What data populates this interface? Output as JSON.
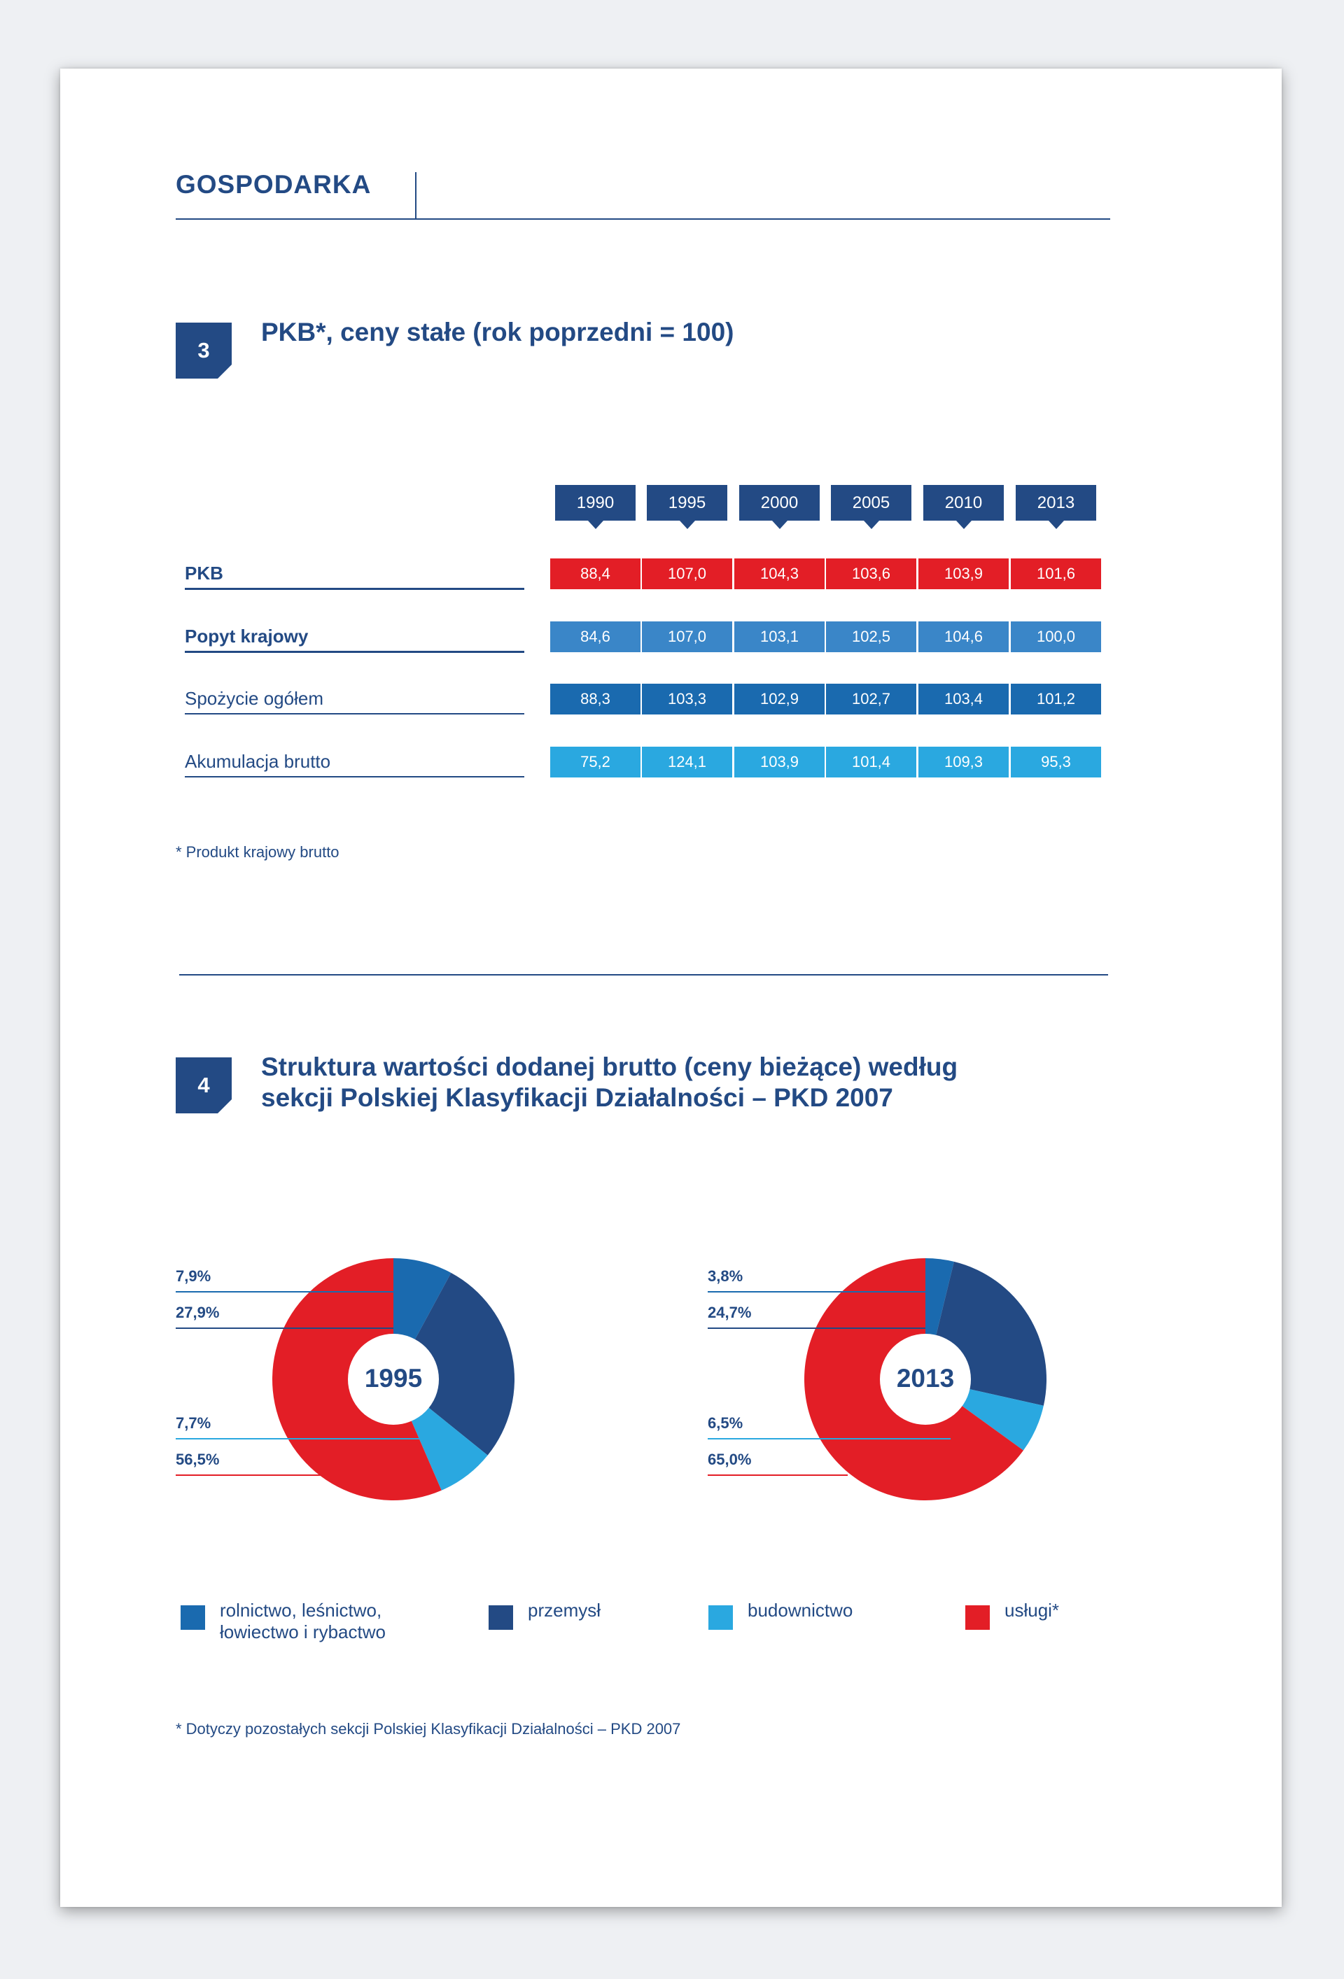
{
  "header": {
    "title": "GOSPODARKA"
  },
  "section3": {
    "number": "3",
    "title": "PKB*, ceny stałe (rok poprzedni = 100)",
    "footnote": "* Produkt krajowy brutto"
  },
  "table": {
    "years": [
      "1990",
      "1995",
      "2000",
      "2005",
      "2010",
      "2013"
    ],
    "rows": [
      {
        "label": "PKB",
        "bold": true,
        "color": "#e31e26",
        "values": [
          "88,4",
          "107,0",
          "104,3",
          "103,6",
          "103,9",
          "101,6"
        ]
      },
      {
        "label": "Popyt krajowy",
        "bold": true,
        "color": "#3a86c8",
        "values": [
          "84,6",
          "107,0",
          "103,1",
          "102,5",
          "104,6",
          "100,0"
        ]
      },
      {
        "label": "Spożycie ogółem",
        "bold": false,
        "color": "#1a6aaf",
        "values": [
          "88,3",
          "103,3",
          "102,9",
          "102,7",
          "103,4",
          "101,2"
        ]
      },
      {
        "label": "Akumulacja brutto",
        "bold": false,
        "color": "#2aa8e0",
        "values": [
          "75,2",
          "124,1",
          "103,9",
          "101,4",
          "109,3",
          "95,3"
        ]
      }
    ]
  },
  "section4": {
    "number": "4",
    "title_line1": "Struktura wartości dodanej brutto (ceny bieżące) według",
    "title_line2": "sekcji Polskiej Klasyfikacji Działalności – PKD 2007",
    "footnote": "* Dotyczy pozostałych sekcji Polskiej Klasyfikacji Działalności – PKD 2007"
  },
  "chart_data": [
    {
      "type": "pie",
      "center_label": "1995",
      "categories": [
        "rolnictwo, leśnictwo, łowiectwo i rybactwo",
        "przemysł",
        "budownictwo",
        "usługi*"
      ],
      "values": [
        7.9,
        27.9,
        7.7,
        56.5
      ],
      "labels": [
        "7,9%",
        "27,9%",
        "7,7%",
        "56,5%"
      ],
      "colors": [
        "#1a6aaf",
        "#234a84",
        "#2aa8e0",
        "#e31e26"
      ]
    },
    {
      "type": "pie",
      "center_label": "2013",
      "categories": [
        "rolnictwo, leśnictwo, łowiectwo i rybactwo",
        "przemysł",
        "budownictwo",
        "usługi*"
      ],
      "values": [
        3.8,
        24.7,
        6.5,
        65.0
      ],
      "labels": [
        "3,8%",
        "24,7%",
        "6,5%",
        "65,0%"
      ],
      "colors": [
        "#1a6aaf",
        "#234a84",
        "#2aa8e0",
        "#e31e26"
      ]
    }
  ],
  "legend": [
    {
      "line1": "rolnictwo, leśnictwo,",
      "line2": "łowiectwo i rybactwo",
      "color": "#1a6aaf"
    },
    {
      "line1": "przemysł",
      "line2": "",
      "color": "#234a84"
    },
    {
      "line1": "budownictwo",
      "line2": "",
      "color": "#2aa8e0"
    },
    {
      "line1": "usługi*",
      "line2": "",
      "color": "#e31e26"
    }
  ]
}
